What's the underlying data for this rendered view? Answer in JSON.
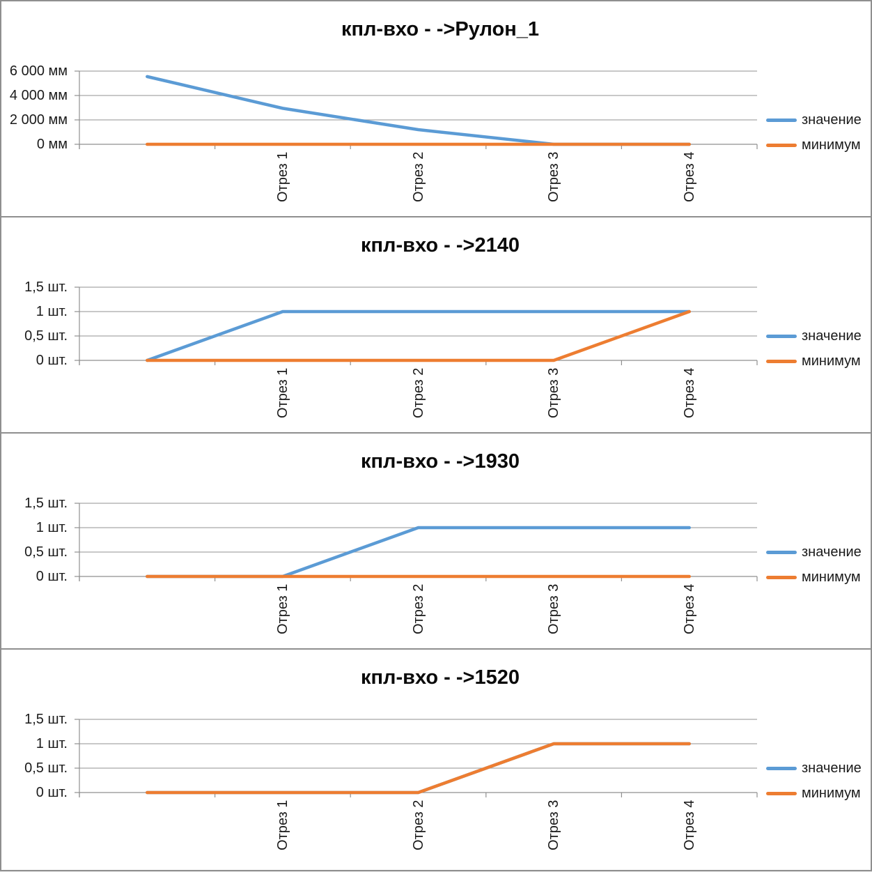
{
  "colors": {
    "value_series": "#5B9BD5",
    "min_series": "#ED7D31",
    "gridline": "#A8A8A8",
    "axis": "#8F8F8F",
    "panel_border": "#8F8F8F",
    "title_text": "#0A0A0A",
    "label_text": "#1A1A1A"
  },
  "chart_data": [
    {
      "type": "line",
      "title": "кпл-вхо - ->Рулон_1",
      "y_unit": "мм",
      "categories": [
        "",
        "Отрез 1",
        "Отрез 2",
        "Отрез 3",
        "Отрез 4"
      ],
      "y_ticks": [
        {
          "value": 0,
          "label": "0 мм"
        },
        {
          "value": 2000,
          "label": "2 000 мм"
        },
        {
          "value": 4000,
          "label": "4 000 мм"
        },
        {
          "value": 6000,
          "label": "6 000 мм"
        }
      ],
      "ylim": [
        0,
        6000
      ],
      "grid": true,
      "legend_position": "right",
      "x_labels_rotation_deg": 90,
      "series": [
        {
          "name": "значение",
          "color": "#5B9BD5",
          "values": [
            5550,
            2950,
            1200,
            0,
            0
          ]
        },
        {
          "name": "минимум",
          "color": "#ED7D31",
          "values": [
            0,
            0,
            0,
            0,
            0
          ]
        }
      ]
    },
    {
      "type": "line",
      "title": "кпл-вхо - ->2140",
      "y_unit": "шт.",
      "categories": [
        "",
        "Отрез 1",
        "Отрез 2",
        "Отрез 3",
        "Отрез 4"
      ],
      "y_ticks": [
        {
          "value": 0,
          "label": "0 шт."
        },
        {
          "value": 0.5,
          "label": "0,5 шт."
        },
        {
          "value": 1,
          "label": "1 шт."
        },
        {
          "value": 1.5,
          "label": "1,5 шт."
        }
      ],
      "ylim": [
        0,
        1.5
      ],
      "grid": true,
      "legend_position": "right",
      "x_labels_rotation_deg": 90,
      "series": [
        {
          "name": "значение",
          "color": "#5B9BD5",
          "values": [
            0,
            1,
            1,
            1,
            1
          ]
        },
        {
          "name": "минимум",
          "color": "#ED7D31",
          "values": [
            0,
            0,
            0,
            0,
            1
          ]
        }
      ]
    },
    {
      "type": "line",
      "title": "кпл-вхо - ->1930",
      "y_unit": "шт.",
      "categories": [
        "",
        "Отрез 1",
        "Отрез 2",
        "Отрез 3",
        "Отрез 4"
      ],
      "y_ticks": [
        {
          "value": 0,
          "label": "0 шт."
        },
        {
          "value": 0.5,
          "label": "0,5 шт."
        },
        {
          "value": 1,
          "label": "1 шт."
        },
        {
          "value": 1.5,
          "label": "1,5 шт."
        }
      ],
      "ylim": [
        0,
        1.5
      ],
      "grid": true,
      "legend_position": "right",
      "x_labels_rotation_deg": 90,
      "series": [
        {
          "name": "значение",
          "color": "#5B9BD5",
          "values": [
            0,
            0,
            1,
            1,
            1
          ]
        },
        {
          "name": "минимум",
          "color": "#ED7D31",
          "values": [
            0,
            0,
            0,
            0,
            0
          ]
        }
      ]
    },
    {
      "type": "line",
      "title": "кпл-вхо - ->1520",
      "y_unit": "шт.",
      "categories": [
        "",
        "Отрез 1",
        "Отрез 2",
        "Отрез 3",
        "Отрез 4"
      ],
      "y_ticks": [
        {
          "value": 0,
          "label": "0 шт."
        },
        {
          "value": 0.5,
          "label": "0,5 шт."
        },
        {
          "value": 1,
          "label": "1 шт."
        },
        {
          "value": 1.5,
          "label": "1,5 шт."
        }
      ],
      "ylim": [
        0,
        1.5
      ],
      "grid": true,
      "legend_position": "right",
      "x_labels_rotation_deg": 90,
      "series": [
        {
          "name": "значение",
          "color": "#5B9BD5",
          "values": [
            0,
            0,
            0,
            1,
            1
          ]
        },
        {
          "name": "минимум",
          "color": "#ED7D31",
          "values": [
            0,
            0,
            0,
            1,
            1
          ]
        }
      ]
    }
  ]
}
